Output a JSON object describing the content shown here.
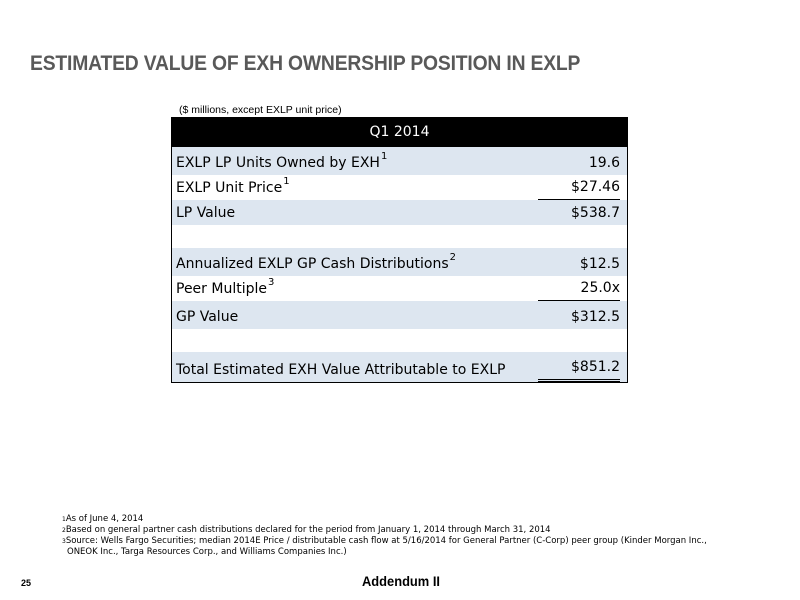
{
  "title": "ESTIMATED VALUE OF EXH OWNERSHIP POSITION IN EXLP",
  "units_note": "($ millions, except EXLP unit price)",
  "table": {
    "header": "Q1 2014",
    "rows": [
      {
        "label": "EXLP LP Units Owned by EXH",
        "sup": "1",
        "value": "19.6"
      },
      {
        "label": "EXLP Unit Price",
        "sup": "1",
        "value": "$27.46"
      },
      {
        "label": "LP Value",
        "sup": "",
        "value": "$538.7"
      },
      {
        "label": "",
        "sup": "",
        "value": ""
      },
      {
        "label": "Annualized EXLP GP Cash Distributions",
        "sup": "2",
        "value": "$12.5"
      },
      {
        "label": "Peer Multiple",
        "sup": "3",
        "value": "25.0x"
      },
      {
        "label": "GP Value",
        "sup": "",
        "value": "$312.5"
      },
      {
        "label": "",
        "sup": "",
        "value": ""
      },
      {
        "label": "Total Estimated EXH Value Attributable to EXLP",
        "sup": "",
        "value": "$851.2"
      }
    ]
  },
  "footnotes": [
    {
      "num": "1",
      "text": "As of June 4, 2014"
    },
    {
      "num": "2",
      "text": "Based on general partner cash distributions declared for the period from January 1, 2014 through March 31, 2014"
    },
    {
      "num": "3",
      "text": "Source: Wells Fargo Securities; median 2014E Price / distributable cash flow at 5/16/2014 for General Partner (C-Corp) peer group (Kinder Morgan Inc.,",
      "cont": "ONEOK Inc., Targa Resources Corp., and Williams Companies Inc.)"
    }
  ],
  "page_number": "25",
  "section_label": "Addendum II"
}
